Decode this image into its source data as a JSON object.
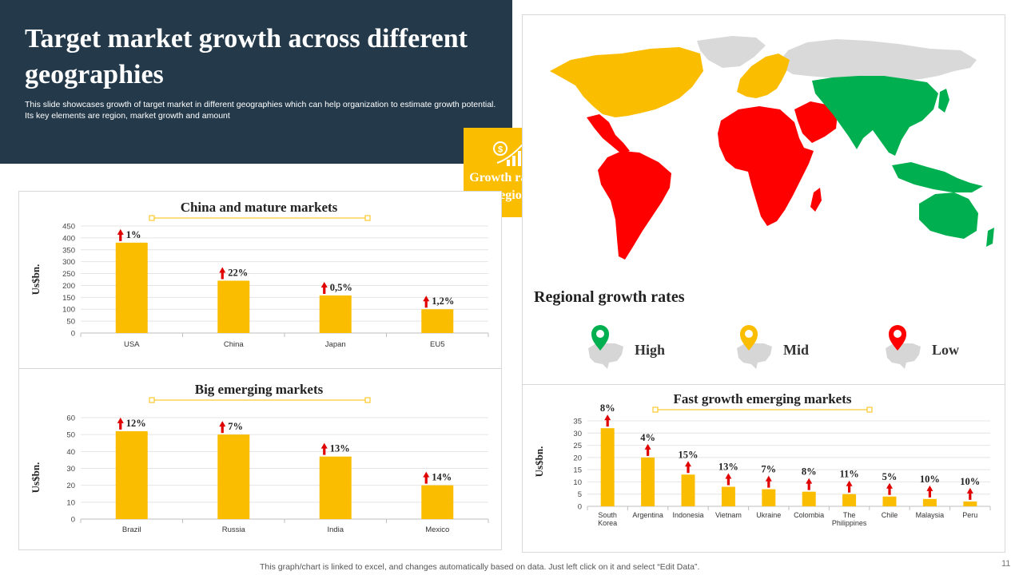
{
  "header": {
    "title": "Target market growth across different geographies",
    "description": "This slide showcases growth of target market in different geographies which can help organization to estimate growth potential. Its key elements are region, market growth and amount"
  },
  "badge": {
    "label": "Growth rate by region",
    "icon": "dollar-growth-icon"
  },
  "colors": {
    "high": "#00b050",
    "mid": "#fbbd00",
    "low": "#ff0000",
    "bar": "#fbbd00",
    "arrow": "#e00000",
    "unknown": "#d9d9d9",
    "header_bg": "#243a4b"
  },
  "map": {
    "legend_title": "Regional growth rates",
    "legend": [
      {
        "label": "High",
        "color": "#00b050"
      },
      {
        "label": "Mid",
        "color": "#fbbd00"
      },
      {
        "label": "Low",
        "color": "#ff0000"
      }
    ]
  },
  "chart_data": [
    {
      "type": "bar",
      "title": "China and mature markets",
      "ylabel": "Us$bn.",
      "xlabel": "",
      "categories": [
        "USA",
        "China",
        "Japan",
        "EU5"
      ],
      "values": [
        380,
        220,
        158,
        100
      ],
      "growth_labels": [
        "1%",
        "22%",
        "0,5%",
        "1,2%"
      ],
      "yticks": [
        0,
        50,
        100,
        150,
        200,
        250,
        300,
        350,
        400,
        450
      ],
      "ylim": [
        0,
        450
      ]
    },
    {
      "type": "bar",
      "title": "Big emerging markets",
      "ylabel": "Us$bn.",
      "xlabel": "",
      "categories": [
        "Brazil",
        "Russia",
        "India",
        "Mexico"
      ],
      "values": [
        52,
        50,
        37,
        20
      ],
      "growth_labels": [
        "12%",
        "7%",
        "13%",
        "14%"
      ],
      "yticks": [
        0,
        10,
        20,
        30,
        40,
        50,
        60
      ],
      "ylim": [
        0,
        60
      ]
    },
    {
      "type": "bar",
      "title": "Fast growth emerging markets",
      "ylabel": "Us$bn.",
      "xlabel": "",
      "categories": [
        "South Korea",
        "Argentina",
        "Indonesia",
        "Vietnam",
        "Ukraine",
        "Colombia",
        "The Philippines",
        "Chile",
        "Malaysia",
        "Peru"
      ],
      "category_lines": [
        [
          "South",
          "Korea"
        ],
        [
          "Argentina"
        ],
        [
          "Indonesia"
        ],
        [
          "Vietnam"
        ],
        [
          "Ukraine"
        ],
        [
          "Colombia"
        ],
        [
          "The",
          "Philippines"
        ],
        [
          "Chile"
        ],
        [
          "Malaysia"
        ],
        [
          "Peru"
        ]
      ],
      "values": [
        32,
        20,
        13,
        8,
        7,
        6,
        5,
        4,
        3,
        2
      ],
      "growth_labels": [
        "8%",
        "4%",
        "15%",
        "13%",
        "7%",
        "8%",
        "11%",
        "5%",
        "10%",
        "10%"
      ],
      "yticks": [
        0,
        5,
        10,
        15,
        20,
        25,
        30,
        35
      ],
      "ylim": [
        0,
        35
      ]
    }
  ],
  "footer": {
    "note": "This graph/chart is linked to excel,  and changes automatically based on data. Just left click on it and select “Edit Data”.",
    "page_number": "11"
  }
}
